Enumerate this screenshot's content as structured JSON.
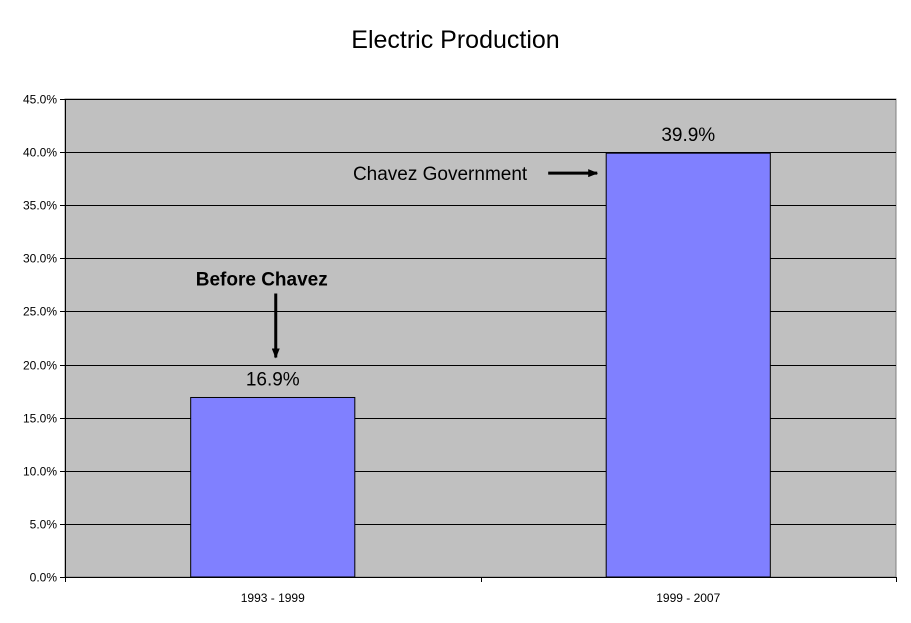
{
  "chart_data": {
    "type": "bar",
    "title": "Electric Production",
    "categories": [
      "1993 - 1999",
      "1999 - 2007"
    ],
    "values": [
      16.9,
      39.9
    ],
    "value_labels": [
      "16.9%",
      "39.9%"
    ],
    "ylim": [
      0,
      45
    ],
    "ytick_step": 5,
    "ytick_labels": [
      "0.0%",
      "5.0%",
      "10.0%",
      "15.0%",
      "20.0%",
      "25.0%",
      "30.0%",
      "35.0%",
      "40.0%",
      "45.0%"
    ],
    "grid": true,
    "legend": "none",
    "annotations": [
      {
        "text": "Before Chavez",
        "target_category": "1993 - 1999",
        "arrow": "down"
      },
      {
        "text": "Chavez Government",
        "target_category": "1999 - 2007",
        "arrow": "right"
      }
    ],
    "colors": {
      "bar": "#8080ff",
      "plot_background": "#c0c0c0",
      "gridline": "#000000"
    }
  }
}
